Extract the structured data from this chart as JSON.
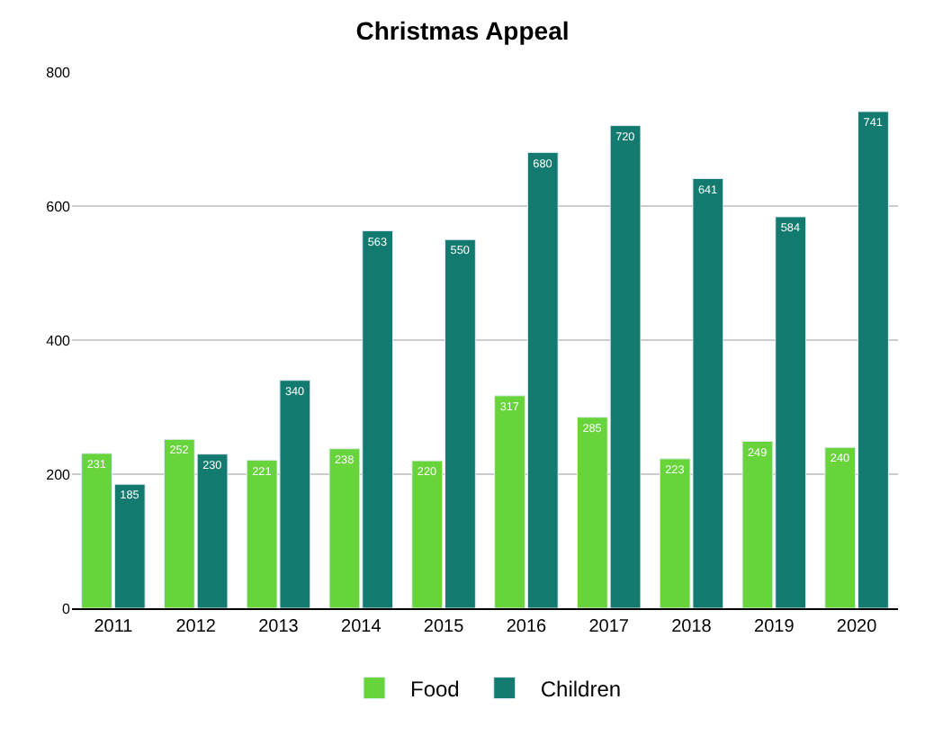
{
  "chart_data": {
    "type": "bar",
    "title": "Christmas Appeal",
    "categories": [
      "2011",
      "2012",
      "2013",
      "2014",
      "2015",
      "2016",
      "2017",
      "2018",
      "2019",
      "2020"
    ],
    "series": [
      {
        "name": "Food",
        "color": "#66d43a",
        "values": [
          231,
          252,
          221,
          238,
          220,
          317,
          285,
          223,
          249,
          240
        ]
      },
      {
        "name": "Children",
        "color": "#127a6e",
        "values": [
          185,
          230,
          340,
          563,
          550,
          680,
          720,
          641,
          584,
          741
        ]
      }
    ],
    "ylim": [
      0,
      800
    ],
    "yticks": [
      0,
      200,
      400,
      600,
      800
    ],
    "grid": "y",
    "legend": "bottom",
    "data_labels": true
  }
}
